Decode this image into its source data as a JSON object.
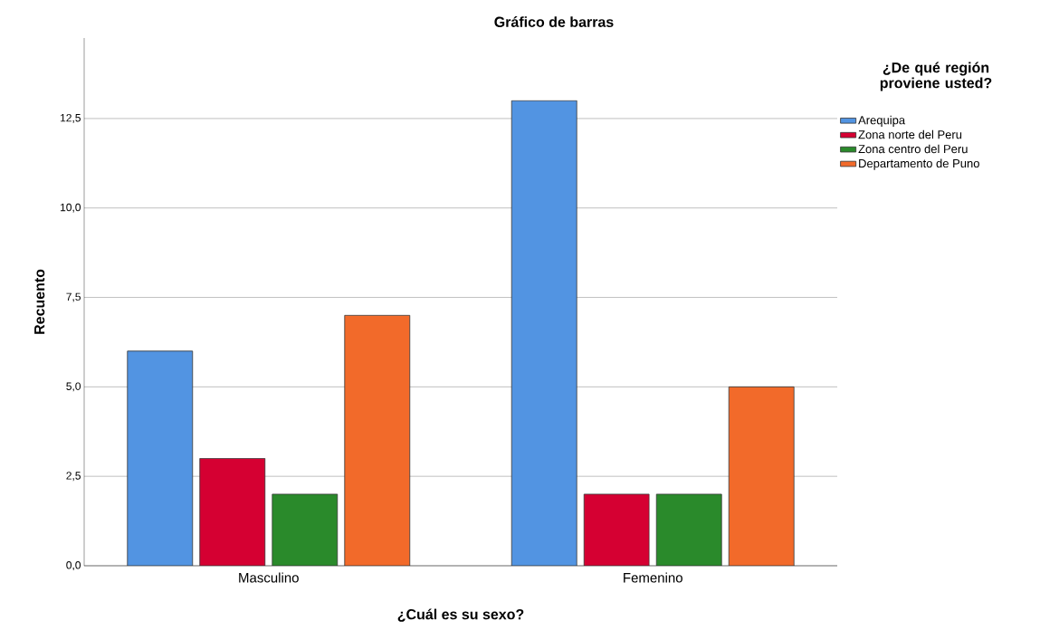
{
  "chart_data": {
    "type": "bar",
    "title": "Gráfico de barras",
    "xlabel": "¿Cuál es su sexo?",
    "ylabel": "Recuento",
    "legend_title": "¿De qué región proviene usted?",
    "categories": [
      "Masculino",
      "Femenino"
    ],
    "series": [
      {
        "name": "Arequipa",
        "color": "#5294e2",
        "values": [
          6,
          13
        ]
      },
      {
        "name": "Zona norte del Peru",
        "color": "#d50032",
        "values": [
          3,
          2
        ]
      },
      {
        "name": "Zona centro del Peru",
        "color": "#2a8a2b",
        "values": [
          2,
          2
        ]
      },
      {
        "name": "Departamento de Puno",
        "color": "#f26a2a",
        "values": [
          7,
          5
        ]
      }
    ],
    "ylim": [
      0,
      14.75
    ],
    "yticks": [
      {
        "value": 0,
        "label": "0,0"
      },
      {
        "value": 2.5,
        "label": "2,5"
      },
      {
        "value": 5,
        "label": "5,0"
      },
      {
        "value": 7.5,
        "label": "7,5"
      },
      {
        "value": 10,
        "label": "10,0"
      },
      {
        "value": 12.5,
        "label": "12,5"
      }
    ],
    "grid": "y",
    "legend": "right"
  }
}
